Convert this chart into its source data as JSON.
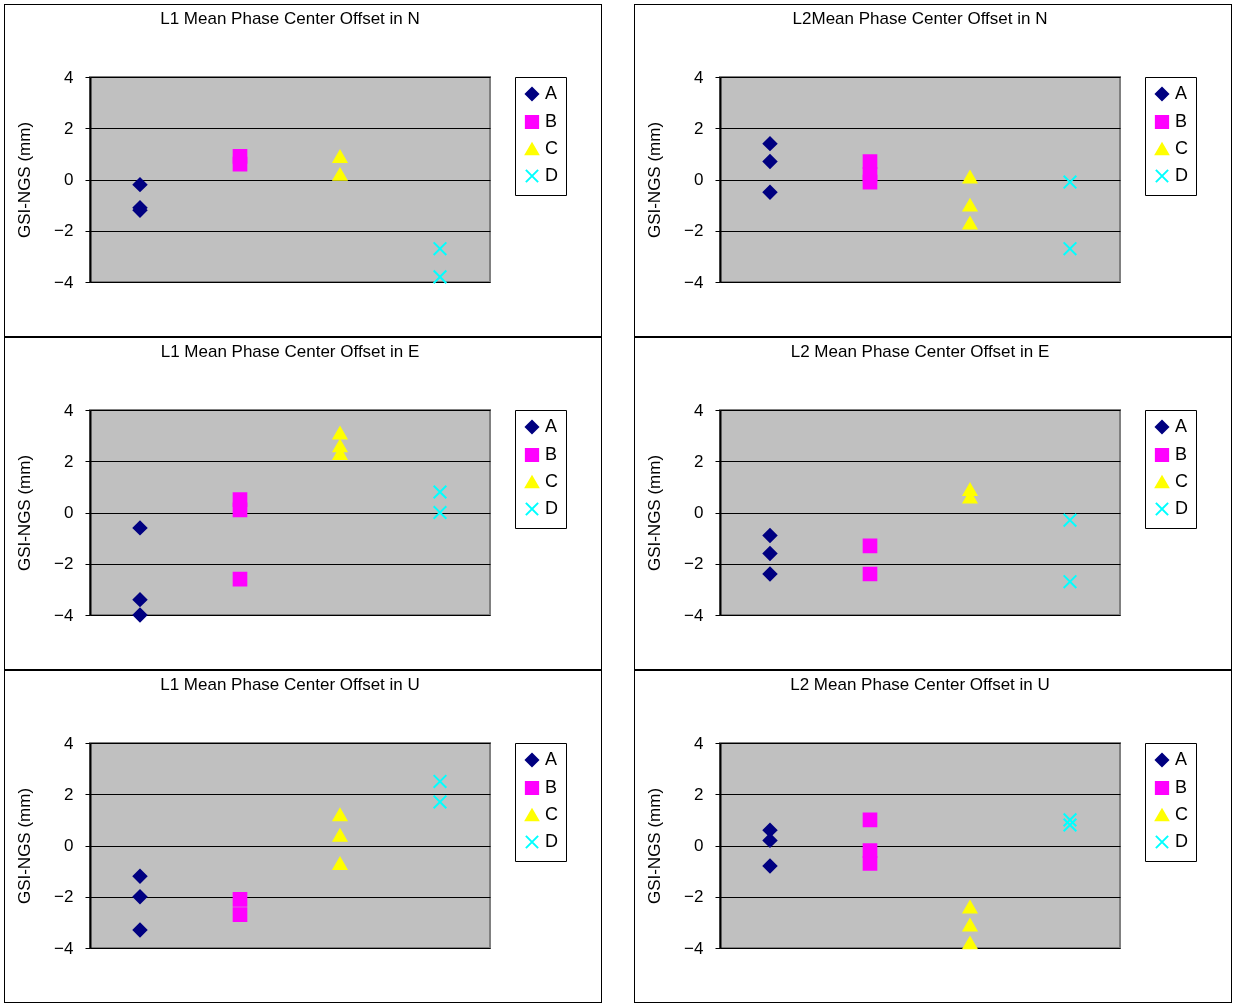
{
  "chart_data": [
    {
      "type": "scatter",
      "title": "L1 Mean Phase Center Offset in N",
      "ylabel": "GSI-NGS (mm)",
      "categories": [
        null,
        null,
        null,
        null
      ],
      "ylim": [
        -4,
        4
      ],
      "yticks": [
        -4,
        -2,
        0,
        2,
        4
      ],
      "grid": "y",
      "legend": "right",
      "tick_labels": "y",
      "series": [
        {
          "name": "A",
          "color": "#000080",
          "marker": "diamond",
          "values": [
            -0.2,
            null,
            null,
            null
          ]
        },
        {
          "color": "#000080",
          "marker": "diamond",
          "values": [
            -1.1,
            null,
            null,
            null
          ]
        },
        {
          "color": "#000080",
          "marker": "diamond",
          "values": [
            -1.2,
            null,
            null,
            null
          ]
        },
        {
          "name": "B",
          "color": "#ff00ff",
          "marker": "square",
          "values": [
            null,
            0.6,
            null,
            null
          ]
        },
        {
          "color": "#ff00ff",
          "marker": "square",
          "values": [
            null,
            0.9,
            null,
            null
          ]
        },
        {
          "name": "C",
          "color": "#ffff00",
          "marker": "triangle",
          "values": [
            null,
            null,
            0.9,
            null
          ]
        },
        {
          "color": "#ffff00",
          "marker": "triangle",
          "values": [
            null,
            null,
            0.2,
            null
          ]
        },
        {
          "name": "D",
          "color": "#00ffff",
          "marker": "cross",
          "values": [
            null,
            null,
            null,
            -2.7
          ]
        },
        {
          "color": "#00ffff",
          "marker": "cross",
          "values": [
            null,
            null,
            null,
            -3.8
          ]
        }
      ]
    },
    {
      "type": "scatter",
      "title": "L2Mean Phase Center Offset in N",
      "ylabel": "GSI-NGS (mm)",
      "categories": [
        null,
        null,
        null,
        null
      ],
      "ylim": [
        -4,
        4
      ],
      "yticks": [
        -4,
        -2,
        0,
        2,
        4
      ],
      "grid": "y",
      "legend": "right",
      "tick_labels": "y",
      "series": [
        {
          "name": "A",
          "color": "#000080",
          "marker": "diamond",
          "values": [
            1.4,
            null,
            null,
            null
          ]
        },
        {
          "color": "#000080",
          "marker": "diamond",
          "values": [
            0.7,
            null,
            null,
            null
          ]
        },
        {
          "color": "#000080",
          "marker": "diamond",
          "values": [
            -0.5,
            null,
            null,
            null
          ]
        },
        {
          "name": "B",
          "color": "#ff00ff",
          "marker": "square",
          "values": [
            null,
            0.7,
            null,
            null
          ]
        },
        {
          "color": "#ff00ff",
          "marker": "square",
          "values": [
            null,
            0.2,
            null,
            null
          ]
        },
        {
          "color": "#ff00ff",
          "marker": "square",
          "values": [
            null,
            -0.1,
            null,
            null
          ]
        },
        {
          "name": "C",
          "color": "#ffff00",
          "marker": "triangle",
          "values": [
            null,
            null,
            0.1,
            null
          ]
        },
        {
          "color": "#ffff00",
          "marker": "triangle",
          "values": [
            null,
            null,
            -1.0,
            null
          ]
        },
        {
          "color": "#ffff00",
          "marker": "triangle",
          "values": [
            null,
            null,
            -1.7,
            null
          ]
        },
        {
          "name": "D",
          "color": "#00ffff",
          "marker": "cross",
          "values": [
            null,
            null,
            null,
            -0.1
          ]
        },
        {
          "color": "#00ffff",
          "marker": "cross",
          "values": [
            null,
            null,
            null,
            -2.7
          ]
        }
      ]
    },
    {
      "type": "scatter",
      "title": "L1 Mean Phase Center Offset in E",
      "ylabel": "GSI-NGS (mm)",
      "categories": [
        null,
        null,
        null,
        null
      ],
      "ylim": [
        -4,
        4
      ],
      "yticks": [
        -4,
        -2,
        0,
        2,
        4
      ],
      "grid": "y",
      "legend": "right",
      "tick_labels": "y",
      "series": [
        {
          "name": "A",
          "color": "#000080",
          "marker": "diamond",
          "values": [
            -0.6,
            null,
            null,
            null
          ]
        },
        {
          "color": "#000080",
          "marker": "diamond",
          "values": [
            -3.4,
            null,
            null,
            null
          ]
        },
        {
          "color": "#000080",
          "marker": "diamond",
          "values": [
            -4.0,
            null,
            null,
            null
          ]
        },
        {
          "name": "B",
          "color": "#ff00ff",
          "marker": "square",
          "values": [
            null,
            0.5,
            null,
            null
          ]
        },
        {
          "color": "#ff00ff",
          "marker": "square",
          "values": [
            null,
            0.1,
            null,
            null
          ]
        },
        {
          "color": "#ff00ff",
          "marker": "square",
          "values": [
            null,
            -2.6,
            null,
            null
          ]
        },
        {
          "name": "C",
          "color": "#ffff00",
          "marker": "triangle",
          "values": [
            null,
            null,
            3.1,
            null
          ]
        },
        {
          "color": "#ffff00",
          "marker": "triangle",
          "values": [
            null,
            null,
            2.6,
            null
          ]
        },
        {
          "color": "#ffff00",
          "marker": "triangle",
          "values": [
            null,
            null,
            2.3,
            null
          ]
        },
        {
          "name": "D",
          "color": "#00ffff",
          "marker": "cross",
          "values": [
            null,
            null,
            null,
            0.8
          ]
        },
        {
          "color": "#00ffff",
          "marker": "cross",
          "values": [
            null,
            null,
            null,
            0.0
          ]
        }
      ]
    },
    {
      "type": "scatter",
      "title": "L2 Mean Phase Center Offset in E",
      "ylabel": "GSI-NGS (mm)",
      "categories": [
        null,
        null,
        null,
        null
      ],
      "ylim": [
        -4,
        4
      ],
      "yticks": [
        -4,
        -2,
        0,
        2,
        4
      ],
      "grid": "y",
      "legend": "right",
      "tick_labels": "y",
      "series": [
        {
          "name": "A",
          "color": "#000080",
          "marker": "diamond",
          "values": [
            -0.9,
            null,
            null,
            null
          ]
        },
        {
          "color": "#000080",
          "marker": "diamond",
          "values": [
            -1.6,
            null,
            null,
            null
          ]
        },
        {
          "color": "#000080",
          "marker": "diamond",
          "values": [
            -2.4,
            null,
            null,
            null
          ]
        },
        {
          "name": "B",
          "color": "#ff00ff",
          "marker": "square",
          "values": [
            null,
            -1.3,
            null,
            null
          ]
        },
        {
          "color": "#ff00ff",
          "marker": "square",
          "values": [
            null,
            -2.4,
            null,
            null
          ]
        },
        {
          "name": "C",
          "color": "#ffff00",
          "marker": "triangle",
          "values": [
            null,
            null,
            0.9,
            null
          ]
        },
        {
          "color": "#ffff00",
          "marker": "triangle",
          "values": [
            null,
            null,
            0.6,
            null
          ]
        },
        {
          "name": "D",
          "color": "#00ffff",
          "marker": "cross",
          "values": [
            null,
            null,
            null,
            -0.3
          ]
        },
        {
          "color": "#00ffff",
          "marker": "cross",
          "values": [
            null,
            null,
            null,
            -2.7
          ]
        }
      ]
    },
    {
      "type": "scatter",
      "title": "L1 Mean Phase Center Offset in U",
      "ylabel": "GSI-NGS (mm)",
      "categories": [
        null,
        null,
        null,
        null
      ],
      "ylim": [
        -4,
        4
      ],
      "yticks": [
        -4,
        -2,
        0,
        2,
        4
      ],
      "grid": "y",
      "legend": "right",
      "tick_labels": "y",
      "series": [
        {
          "name": "A",
          "color": "#000080",
          "marker": "diamond",
          "values": [
            -1.2,
            null,
            null,
            null
          ]
        },
        {
          "color": "#000080",
          "marker": "diamond",
          "values": [
            -2.0,
            null,
            null,
            null
          ]
        },
        {
          "color": "#000080",
          "marker": "diamond",
          "values": [
            -3.3,
            null,
            null,
            null
          ]
        },
        {
          "name": "B",
          "color": "#ff00ff",
          "marker": "square",
          "values": [
            null,
            -2.1,
            null,
            null
          ]
        },
        {
          "color": "#ff00ff",
          "marker": "square",
          "values": [
            null,
            -2.7,
            null,
            null
          ]
        },
        {
          "name": "C",
          "color": "#ffff00",
          "marker": "triangle",
          "values": [
            null,
            null,
            1.2,
            null
          ]
        },
        {
          "color": "#ffff00",
          "marker": "triangle",
          "values": [
            null,
            null,
            0.4,
            null
          ]
        },
        {
          "color": "#ffff00",
          "marker": "triangle",
          "values": [
            null,
            null,
            -0.7,
            null
          ]
        },
        {
          "name": "D",
          "color": "#00ffff",
          "marker": "cross",
          "values": [
            null,
            null,
            null,
            2.5
          ]
        },
        {
          "color": "#00ffff",
          "marker": "cross",
          "values": [
            null,
            null,
            null,
            1.7
          ]
        }
      ]
    },
    {
      "type": "scatter",
      "title": "L2 Mean Phase Center Offset in U",
      "ylabel": "GSI-NGS (mm)",
      "categories": [
        null,
        null,
        null,
        null
      ],
      "ylim": [
        -4,
        4
      ],
      "yticks": [
        -4,
        -2,
        0,
        2,
        4
      ],
      "grid": "y",
      "legend": "right",
      "tick_labels": "y",
      "series": [
        {
          "name": "A",
          "color": "#000080",
          "marker": "diamond",
          "values": [
            0.6,
            null,
            null,
            null
          ]
        },
        {
          "color": "#000080",
          "marker": "diamond",
          "values": [
            0.2,
            null,
            null,
            null
          ]
        },
        {
          "color": "#000080",
          "marker": "diamond",
          "values": [
            -0.8,
            null,
            null,
            null
          ]
        },
        {
          "name": "B",
          "color": "#ff00ff",
          "marker": "square",
          "values": [
            null,
            1.0,
            null,
            null
          ]
        },
        {
          "color": "#ff00ff",
          "marker": "square",
          "values": [
            null,
            -0.2,
            null,
            null
          ]
        },
        {
          "color": "#ff00ff",
          "marker": "square",
          "values": [
            null,
            -0.7,
            null,
            null
          ]
        },
        {
          "name": "C",
          "color": "#ffff00",
          "marker": "triangle",
          "values": [
            null,
            null,
            -2.4,
            null
          ]
        },
        {
          "color": "#ffff00",
          "marker": "triangle",
          "values": [
            null,
            null,
            -3.1,
            null
          ]
        },
        {
          "color": "#ffff00",
          "marker": "triangle",
          "values": [
            null,
            null,
            -3.8,
            null
          ]
        },
        {
          "name": "D",
          "color": "#00ffff",
          "marker": "cross",
          "values": [
            null,
            null,
            null,
            1.0
          ]
        },
        {
          "color": "#00ffff",
          "marker": "cross",
          "values": [
            null,
            null,
            null,
            0.8
          ]
        }
      ]
    }
  ]
}
